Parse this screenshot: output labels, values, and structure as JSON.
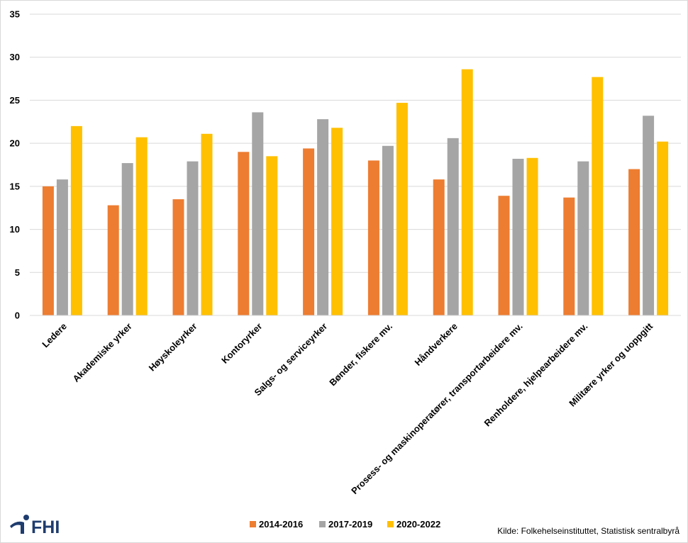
{
  "chart_data": {
    "type": "bar",
    "categories": [
      "Ledere",
      "Akademiske yrker",
      "Høyskoleyrker",
      "Kontoryrker",
      "Salgs- og serviceyrker",
      "Bønder, fiskere mv.",
      "Håndverkere",
      "Prosess- og maskinoperatører, transportarbeidere mv.",
      "Renholdere, hjelpearbeidere mv.",
      "Militære yrker og uoppgitt"
    ],
    "series": [
      {
        "name": "2014-2016",
        "color": "#ED7D31",
        "values": [
          15.0,
          12.8,
          13.5,
          19.0,
          19.4,
          18.0,
          15.8,
          13.9,
          13.7,
          17.0
        ]
      },
      {
        "name": "2017-2019",
        "color": "#A5A5A5",
        "values": [
          15.8,
          17.7,
          17.9,
          23.6,
          22.8,
          19.7,
          20.6,
          18.2,
          17.9,
          23.2
        ]
      },
      {
        "name": "2020-2022",
        "color": "#FFC000",
        "values": [
          22.0,
          20.7,
          21.1,
          18.5,
          21.8,
          24.7,
          28.6,
          18.3,
          27.7,
          20.2
        ]
      }
    ],
    "title": "",
    "xlabel": "",
    "ylabel": "",
    "ylim": [
      0,
      35
    ],
    "yticks": [
      0,
      5,
      10,
      15,
      20,
      25,
      30,
      35
    ],
    "grid": true,
    "legend_position": "bottom"
  },
  "footer": {
    "source": "Kilde: Folkehelseinstituttet, Statistisk sentralbyrå",
    "logo_text": "FHI"
  }
}
